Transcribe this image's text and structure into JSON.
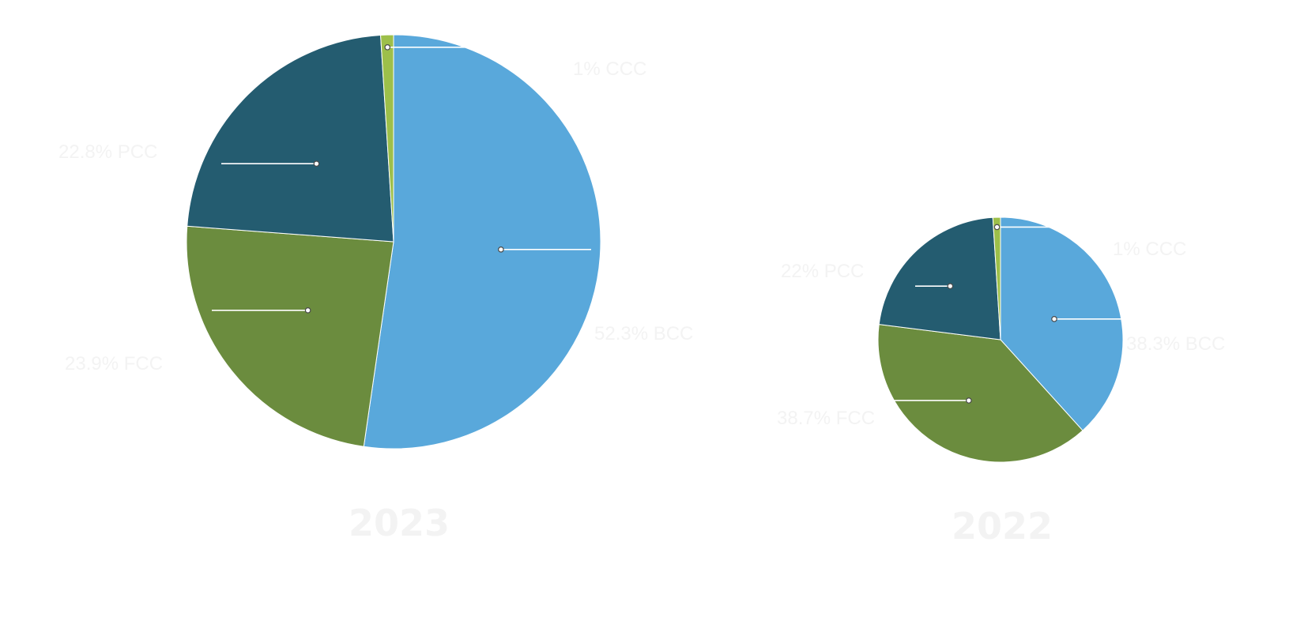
{
  "chart_data": [
    {
      "type": "pie",
      "title": "2023",
      "slices": [
        {
          "label": "52.3% BCC",
          "value": 52.3,
          "color": "#59a8db"
        },
        {
          "label": "23.9% FCC",
          "value": 23.9,
          "color": "#6b8c3e"
        },
        {
          "label": "22.8% PCC",
          "value": 22.8,
          "color": "#245c70"
        },
        {
          "label": "1% CCC",
          "value": 1.0,
          "color": "#9dbf4a"
        }
      ]
    },
    {
      "type": "pie",
      "title": "2022",
      "slices": [
        {
          "label": "38.3% BCC",
          "value": 38.3,
          "color": "#59a8db"
        },
        {
          "label": "38.7% FCC",
          "value": 38.7,
          "color": "#6b8c3e"
        },
        {
          "label": "22% PCC",
          "value": 22.0,
          "color": "#245c70"
        },
        {
          "label": "1% CCC",
          "value": 1.0,
          "color": "#9dbf4a"
        }
      ]
    }
  ]
}
